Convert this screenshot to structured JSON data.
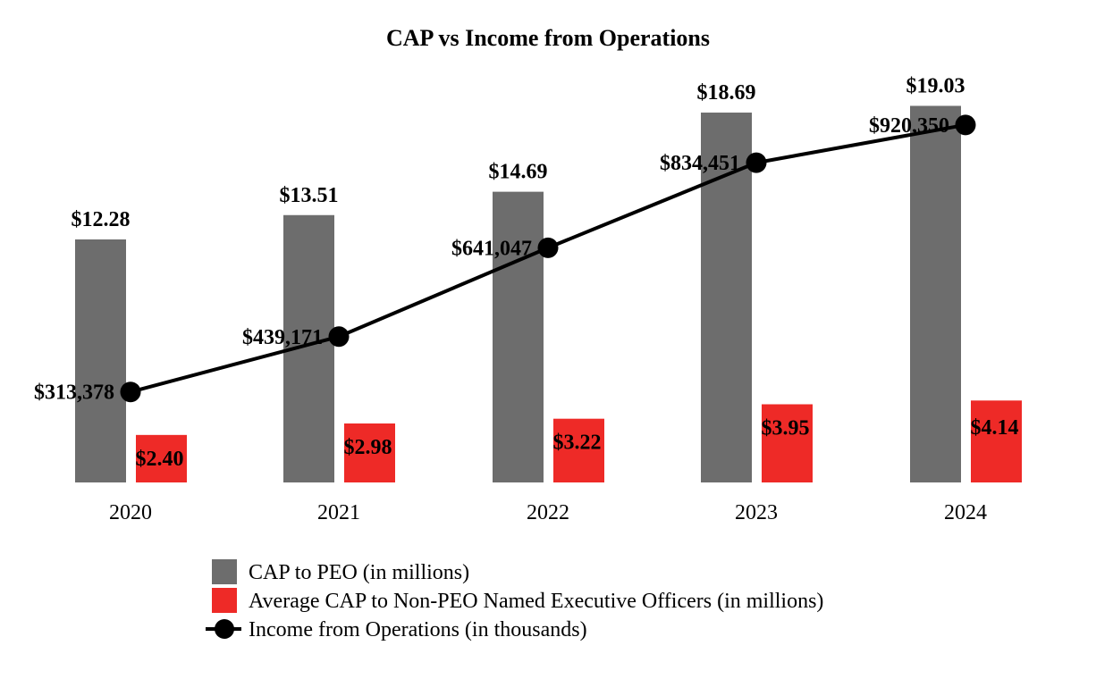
{
  "chart_data": {
    "type": "bar",
    "title": "CAP vs Income from Operations",
    "categories": [
      "2020",
      "2021",
      "2022",
      "2023",
      "2024"
    ],
    "series": [
      {
        "name": "CAP to PEO (in millions)",
        "kind": "bar",
        "color": "#6d6d6d",
        "values": [
          12.28,
          13.51,
          14.69,
          18.69,
          19.03
        ],
        "labels": [
          "$12.28",
          "$13.51",
          "$14.69",
          "$18.69",
          "$19.03"
        ]
      },
      {
        "name": "Average CAP to Non-PEO Named Executive Officers (in millions)",
        "kind": "bar",
        "color": "#ee2a27",
        "values": [
          2.4,
          2.98,
          3.22,
          3.95,
          4.14
        ],
        "labels": [
          "$2.40",
          "$2.98",
          "$3.22",
          "$3.95",
          "$4.14"
        ]
      },
      {
        "name": "Income from Operations (in thousands)",
        "kind": "line",
        "color": "#000000",
        "values": [
          313378,
          439171,
          641047,
          834451,
          920350
        ],
        "labels": [
          "$313,378",
          "$439,171",
          "$641,047",
          "$834,451",
          "$920,350"
        ]
      }
    ],
    "bar_axis_range": [
      0,
      20
    ],
    "line_axis_range": [
      0,
      1000000
    ],
    "legend_position": "bottom",
    "grid": false
  }
}
